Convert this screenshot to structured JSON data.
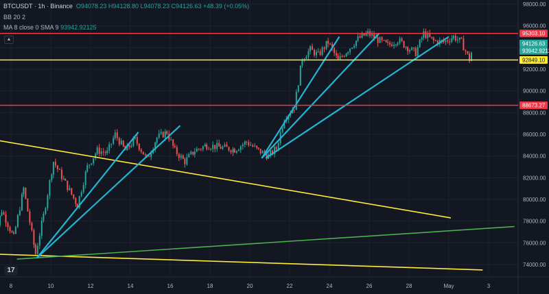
{
  "header": {
    "symbol": "BTCUSDT · 1h · Binance",
    "ohlc": "O94078.23  H94128.80  L94078.23  C94126.63  +48.39 (+0.05%)",
    "ind1": "BB 20 2",
    "ind2_label": "MA 8 close 0 SMA 9",
    "ind2_value": "93942.92125"
  },
  "colors": {
    "bg": "#131722",
    "up": "#26a69a",
    "down": "#ef5350",
    "red_line": "#f23645",
    "yellow_line": "#ffeb3b",
    "cyan_line": "#22b5d4",
    "green_line": "#4caf50"
  },
  "chart_data": {
    "type": "candlestick",
    "y_axis_ticks": [
      74000,
      76000,
      78000,
      80000,
      82000,
      84000,
      86000,
      88000,
      90000,
      92000,
      94000,
      96000,
      98000
    ],
    "x_axis_ticks": [
      "8",
      "10",
      "12",
      "14",
      "16",
      "18",
      "20",
      "22",
      "24",
      "26",
      "28",
      "May",
      "3"
    ],
    "ylim": [
      73000,
      98200
    ],
    "price_close_path": [
      {
        "d": 7.0,
        "p": 75500
      },
      {
        "d": 7.5,
        "p": 79000
      },
      {
        "d": 8.1,
        "p": 76500
      },
      {
        "d": 8.6,
        "p": 81000
      },
      {
        "d": 9.2,
        "p": 75000
      },
      {
        "d": 9.6,
        "p": 78500
      },
      {
        "d": 10.1,
        "p": 83500
      },
      {
        "d": 10.7,
        "p": 81500
      },
      {
        "d": 11.3,
        "p": 79500
      },
      {
        "d": 11.8,
        "p": 83000
      },
      {
        "d": 12.3,
        "p": 84500
      },
      {
        "d": 12.8,
        "p": 84300
      },
      {
        "d": 13.2,
        "p": 86000
      },
      {
        "d": 13.7,
        "p": 84500
      },
      {
        "d": 14.2,
        "p": 85500
      },
      {
        "d": 14.8,
        "p": 83700
      },
      {
        "d": 15.3,
        "p": 85700
      },
      {
        "d": 15.8,
        "p": 86200
      },
      {
        "d": 16.2,
        "p": 84500
      },
      {
        "d": 16.7,
        "p": 83500
      },
      {
        "d": 17.2,
        "p": 84500
      },
      {
        "d": 17.8,
        "p": 85000
      },
      {
        "d": 18.5,
        "p": 84800
      },
      {
        "d": 19.2,
        "p": 84600
      },
      {
        "d": 19.8,
        "p": 85300
      },
      {
        "d": 20.4,
        "p": 84500
      },
      {
        "d": 20.9,
        "p": 84000
      },
      {
        "d": 21.3,
        "p": 84700
      },
      {
        "d": 21.7,
        "p": 87500
      },
      {
        "d": 22.2,
        "p": 88500
      },
      {
        "d": 22.6,
        "p": 93000
      },
      {
        "d": 23.0,
        "p": 93800
      },
      {
        "d": 23.4,
        "p": 93300
      },
      {
        "d": 23.9,
        "p": 94500
      },
      {
        "d": 24.4,
        "p": 92800
      },
      {
        "d": 24.9,
        "p": 93800
      },
      {
        "d": 25.4,
        "p": 94800
      },
      {
        "d": 25.9,
        "p": 95300
      },
      {
        "d": 26.4,
        "p": 94700
      },
      {
        "d": 26.9,
        "p": 94200
      },
      {
        "d": 27.4,
        "p": 94700
      },
      {
        "d": 27.9,
        "p": 94000
      },
      {
        "d": 28.3,
        "p": 93500
      },
      {
        "d": 28.7,
        "p": 95300
      },
      {
        "d": 29.2,
        "p": 94600
      },
      {
        "d": 29.7,
        "p": 94500
      },
      {
        "d": 30.2,
        "p": 95000
      },
      {
        "d": 30.6,
        "p": 94500
      },
      {
        "d": 31.0,
        "p": 92900
      },
      {
        "d": 31.2,
        "p": 94126
      }
    ],
    "horizontal_levels": [
      {
        "price": 95303.1,
        "label": "95303.10",
        "color": "red"
      },
      {
        "price": 92849.1,
        "label": "92849.10",
        "color": "yellow"
      },
      {
        "price": 88673.27,
        "label": "88673.27",
        "color": "red"
      }
    ],
    "trendlines": [
      {
        "color": "yellow",
        "x1": 6.5,
        "y1": 85700,
        "x2": 30.1,
        "y2": 78300
      },
      {
        "color": "yellow",
        "x1": 6.5,
        "y1": 75000,
        "x2": 31.7,
        "y2": 73500
      },
      {
        "color": "green",
        "x1": 8.3,
        "y1": 74500,
        "x2": 33.3,
        "y2": 77500
      },
      {
        "color": "cyan",
        "x1": 9.3,
        "y1": 74600,
        "x2": 14.4,
        "y2": 86200
      },
      {
        "color": "cyan",
        "x1": 9.3,
        "y1": 74600,
        "x2": 16.5,
        "y2": 86800
      },
      {
        "color": "cyan",
        "x1": 20.6,
        "y1": 83800,
        "x2": 24.5,
        "y2": 95000
      },
      {
        "color": "cyan",
        "x1": 20.6,
        "y1": 83800,
        "x2": 26.5,
        "y2": 95300
      },
      {
        "color": "cyan",
        "x1": 20.8,
        "y1": 83800,
        "x2": 30.0,
        "y2": 95000
      }
    ],
    "price_labels": [
      {
        "price": 94126.63,
        "label": "94126.63",
        "kind": "last"
      },
      {
        "price": 93942.92,
        "label": "93942.9212",
        "kind": "ma"
      }
    ]
  }
}
